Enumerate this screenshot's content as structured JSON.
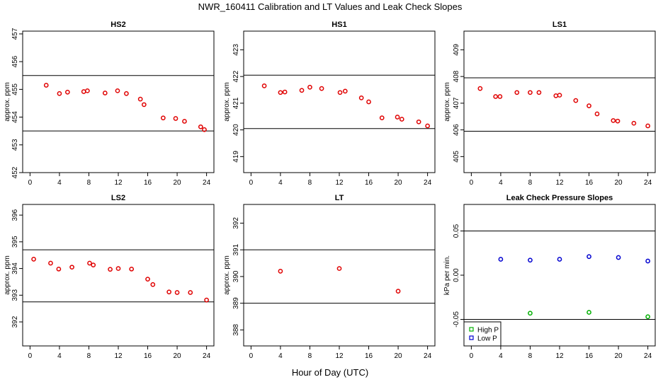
{
  "figure": {
    "title": "NWR_160411  Calibration and LT Values and Leak Check Slopes",
    "xlabel": "Hour of Day (UTC)"
  },
  "chart_data": [
    {
      "type": "scatter",
      "title": "HS2",
      "ylabel": "approx. ppm",
      "xlim": [
        -1,
        25
      ],
      "ylim": [
        452,
        457.1
      ],
      "xticks": [
        0,
        4,
        8,
        12,
        16,
        20,
        24
      ],
      "yticks": [
        452,
        453,
        454,
        455,
        456,
        457
      ],
      "hlines": [
        455.5,
        453.5
      ],
      "colors": {
        "marker": "#e00000"
      },
      "series": [
        {
          "x": [
            2.2,
            4.0,
            5.1,
            7.3,
            7.8,
            10.2,
            11.9,
            13.1,
            15.0,
            15.5,
            18.1,
            19.8,
            21.0,
            23.2,
            23.7
          ],
          "y": [
            455.15,
            454.85,
            454.9,
            454.92,
            454.95,
            454.87,
            454.95,
            454.85,
            454.65,
            454.45,
            453.97,
            453.95,
            453.85,
            453.65,
            453.55
          ]
        }
      ]
    },
    {
      "type": "scatter",
      "title": "HS1",
      "ylabel": "approx. ppm",
      "xlim": [
        -1,
        25
      ],
      "ylim": [
        418.4,
        423.7
      ],
      "xticks": [
        0,
        4,
        8,
        12,
        16,
        20,
        24
      ],
      "yticks": [
        419,
        420,
        421,
        422,
        423
      ],
      "hlines": [
        422.05,
        420.05
      ],
      "colors": {
        "marker": "#e00000"
      },
      "series": [
        {
          "x": [
            1.8,
            4.0,
            4.6,
            6.9,
            8.0,
            9.6,
            12.1,
            12.8,
            15.0,
            16.0,
            17.8,
            19.9,
            20.5,
            22.8,
            24.0
          ],
          "y": [
            421.65,
            421.4,
            421.42,
            421.48,
            421.6,
            421.55,
            421.4,
            421.45,
            421.2,
            421.05,
            420.45,
            420.48,
            420.4,
            420.3,
            420.15
          ]
        }
      ]
    },
    {
      "type": "scatter",
      "title": "LS1",
      "ylabel": "approx. ppm",
      "xlim": [
        -1,
        25
      ],
      "ylim": [
        404.4,
        409.7
      ],
      "xticks": [
        0,
        4,
        8,
        12,
        16,
        20,
        24
      ],
      "yticks": [
        405,
        406,
        407,
        408,
        409
      ],
      "hlines": [
        407.95,
        405.95
      ],
      "colors": {
        "marker": "#e00000"
      },
      "series": [
        {
          "x": [
            1.2,
            3.3,
            3.9,
            6.2,
            8.0,
            9.2,
            11.5,
            12.0,
            14.2,
            16.0,
            17.1,
            19.3,
            19.9,
            22.1,
            24.0
          ],
          "y": [
            407.55,
            407.25,
            407.25,
            407.4,
            407.4,
            407.4,
            407.28,
            407.3,
            407.1,
            406.9,
            406.6,
            406.35,
            406.33,
            406.25,
            406.15
          ]
        }
      ]
    },
    {
      "type": "scatter",
      "title": "LS2",
      "ylabel": "approx. ppm",
      "xlim": [
        -1,
        25
      ],
      "ylim": [
        391.1,
        396.4
      ],
      "xticks": [
        0,
        4,
        8,
        12,
        16,
        20,
        24
      ],
      "yticks": [
        392,
        393,
        394,
        395,
        396
      ],
      "hlines": [
        394.7,
        392.75
      ],
      "colors": {
        "marker": "#e00000"
      },
      "series": [
        {
          "x": [
            0.5,
            2.8,
            3.9,
            5.7,
            8.1,
            8.6,
            10.9,
            12.0,
            13.8,
            16.0,
            16.7,
            18.9,
            20.0,
            21.8,
            24.0
          ],
          "y": [
            394.35,
            394.2,
            393.98,
            394.05,
            394.2,
            394.13,
            393.97,
            394.0,
            393.98,
            393.6,
            393.4,
            393.12,
            393.1,
            393.1,
            392.82
          ]
        }
      ]
    },
    {
      "type": "scatter",
      "title": "LT",
      "ylabel": "approx. ppm",
      "xlim": [
        -1,
        25
      ],
      "ylim": [
        387.4,
        392.7
      ],
      "xticks": [
        0,
        4,
        8,
        12,
        16,
        20,
        24
      ],
      "yticks": [
        388,
        389,
        390,
        391,
        392
      ],
      "hlines": [
        391.0,
        389.0
      ],
      "colors": {
        "marker": "#e00000"
      },
      "series": [
        {
          "x": [
            4.0,
            12.0,
            20.0
          ],
          "y": [
            390.2,
            390.3,
            389.45
          ]
        }
      ]
    },
    {
      "type": "scatter",
      "title": "Leak Check Pressure Slopes",
      "ylabel": "kPa per min.",
      "xlim": [
        -1,
        25
      ],
      "ylim": [
        -0.08,
        0.08
      ],
      "xticks": [
        0,
        4,
        8,
        12,
        16,
        20,
        24
      ],
      "yticks": [
        -0.05,
        0.0,
        0.05
      ],
      "ytick_labels": [
        "-0.05",
        "0.00",
        "0.05"
      ],
      "hlines": [
        0.05,
        -0.05
      ],
      "legend": {
        "position": "bottom-left"
      },
      "series": [
        {
          "name": "High P",
          "color": "#00b000",
          "x": [
            8.0,
            16.0,
            24.0
          ],
          "y": [
            -0.043,
            -0.042,
            -0.047
          ]
        },
        {
          "name": "Low P",
          "color": "#0000d0",
          "x": [
            4.0,
            8.0,
            12.0,
            16.0,
            20.0,
            24.0
          ],
          "y": [
            0.018,
            0.017,
            0.018,
            0.021,
            0.02,
            0.016
          ]
        }
      ]
    }
  ]
}
